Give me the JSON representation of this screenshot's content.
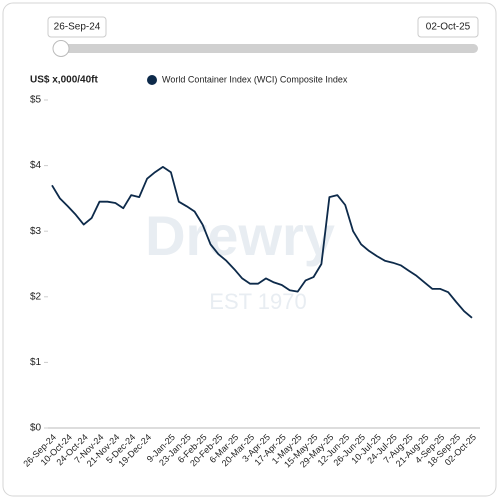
{
  "slider": {
    "start": "26-Sep-24",
    "end": "02-Oct-25"
  },
  "watermark": {
    "brand": "Drewry",
    "est": "EST 1970"
  },
  "chart_data": {
    "type": "line",
    "y_label": "US$ x,000/40ft",
    "categories": [
      "26-Sep-24",
      null,
      "10-Oct-24",
      null,
      "24-Oct-24",
      null,
      "7-Nov-24",
      null,
      "21-Nov-24",
      null,
      "5-Dec-24",
      null,
      "19-Dec-24",
      null,
      null,
      "9-Jan-25",
      null,
      "23-Jan-25",
      null,
      "6-Feb-25",
      null,
      "20-Feb-25",
      null,
      "6-Mar-25",
      null,
      "20-Mar-25",
      null,
      "3-Apr-25",
      null,
      "17-Apr-25",
      null,
      "1-May-25",
      null,
      "15-May-25",
      null,
      "29-May-25",
      null,
      "12-Jun-25",
      null,
      "26-Jun-25",
      null,
      "10-Jul-25",
      null,
      "24-Jul-25",
      null,
      "7-Aug-25",
      null,
      "21-Aug-25",
      null,
      "4-Sep-25",
      null,
      "18-Sep-25",
      null,
      "02-Oct-25"
    ],
    "series": [
      {
        "name": "World Container Index (WCI) Composite Index",
        "color": "#0d2a4a",
        "values": [
          3.7,
          3.5,
          3.38,
          3.25,
          3.1,
          3.2,
          3.45,
          3.45,
          3.43,
          3.35,
          3.55,
          3.52,
          3.8,
          3.9,
          3.98,
          3.9,
          3.45,
          3.38,
          3.3,
          3.1,
          2.8,
          2.65,
          2.55,
          2.42,
          2.28,
          2.2,
          2.2,
          2.28,
          2.22,
          2.18,
          2.1,
          2.08,
          2.25,
          2.3,
          2.5,
          3.52,
          3.55,
          3.4,
          3.0,
          2.8,
          2.7,
          2.62,
          2.55,
          2.52,
          2.48,
          2.4,
          2.32,
          2.22,
          2.12,
          2.12,
          2.07,
          1.92,
          1.78,
          1.68
        ]
      }
    ],
    "ylim": [
      0,
      5
    ],
    "yticks": [
      {
        "value": 0,
        "label": "$0"
      },
      {
        "value": 1,
        "label": "$1"
      },
      {
        "value": 2,
        "label": "$2"
      },
      {
        "value": 3,
        "label": "$3"
      },
      {
        "value": 4,
        "label": "$4"
      },
      {
        "value": 5,
        "label": "$5"
      }
    ],
    "grid": false
  }
}
